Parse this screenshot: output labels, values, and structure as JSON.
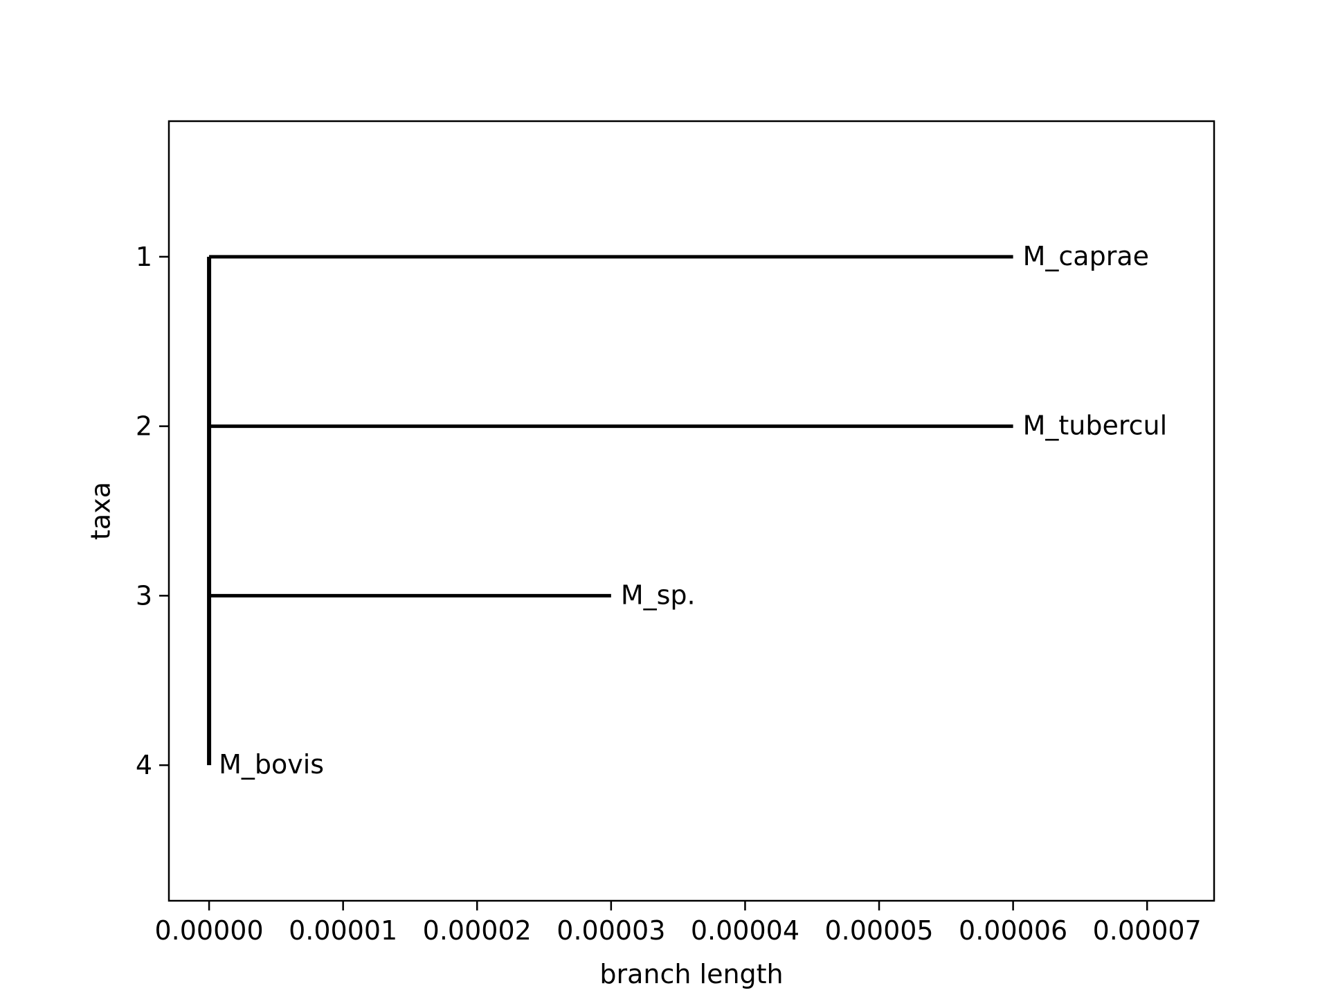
{
  "chart_data": {
    "type": "tree",
    "title": "",
    "xlabel": "branch length",
    "ylabel": "taxa",
    "xlim": [
      -3e-06,
      7.5e-05
    ],
    "ylim": [
      4.8,
      0.2
    ],
    "x_ticks": [
      0.0,
      1e-05,
      2e-05,
      3e-05,
      4e-05,
      5e-05,
      6e-05,
      7e-05
    ],
    "x_tick_labels": [
      "0.00000",
      "0.00001",
      "0.00002",
      "0.00003",
      "0.00004",
      "0.00005",
      "0.00006",
      "0.00007"
    ],
    "y_ticks": [
      1,
      2,
      3,
      4
    ],
    "y_tick_labels": [
      "1",
      "2",
      "3",
      "4"
    ],
    "grid": false,
    "line_color": "#000000",
    "root": {
      "x": 0.0,
      "y_top": 1,
      "y_bottom": 4
    },
    "branches": [
      {
        "taxon": "M_caprae",
        "y": 1,
        "x_start": 0.0,
        "x_end": 6e-05
      },
      {
        "taxon": "M_tubercul",
        "y": 2,
        "x_start": 0.0,
        "x_end": 6e-05
      },
      {
        "taxon": "M_sp.",
        "y": 3,
        "x_start": 0.0,
        "x_end": 3e-05
      },
      {
        "taxon": "M_bovis",
        "y": 4,
        "x_start": 0.0,
        "x_end": 0.0
      }
    ]
  }
}
